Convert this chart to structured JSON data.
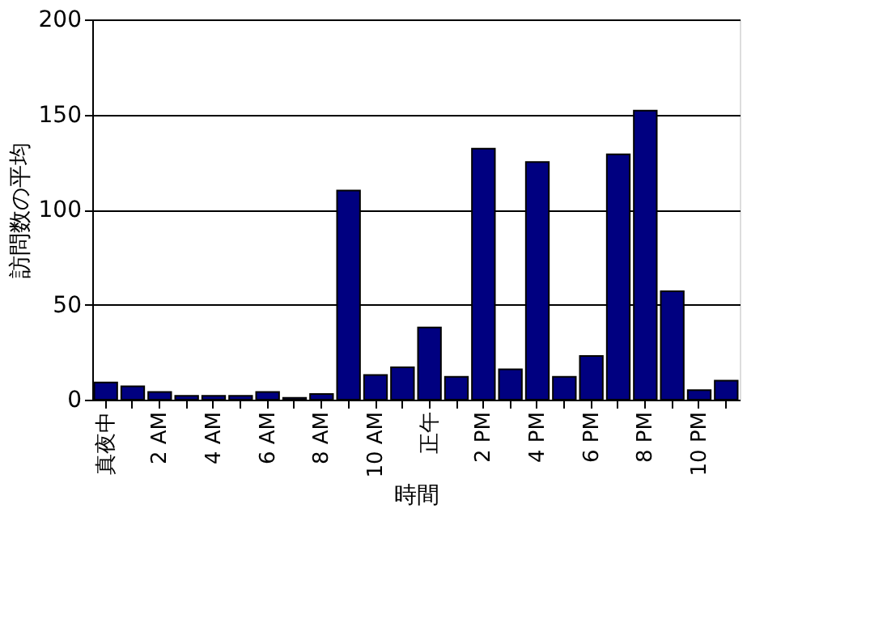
{
  "chart_data": {
    "type": "bar",
    "xlabel": "時間",
    "ylabel": "訪問数の平均",
    "categories": [
      "真夜中",
      null,
      "2 AM",
      null,
      "4 AM",
      null,
      "6 AM",
      null,
      "8 AM",
      null,
      "10 AM",
      null,
      "正午",
      null,
      "2 PM",
      null,
      "4 PM",
      null,
      "6 PM",
      null,
      "8 PM",
      null,
      "10 PM",
      null
    ],
    "values": [
      9,
      7,
      4,
      2,
      2,
      2,
      4,
      1,
      3,
      110,
      13,
      17,
      38,
      12,
      132,
      16,
      125,
      12,
      23,
      129,
      152,
      57,
      5,
      10
    ],
    "color": "#000080",
    "ylim": [
      0,
      200
    ],
    "yticks": [
      0,
      50,
      100,
      150,
      200
    ],
    "grid": "y"
  }
}
